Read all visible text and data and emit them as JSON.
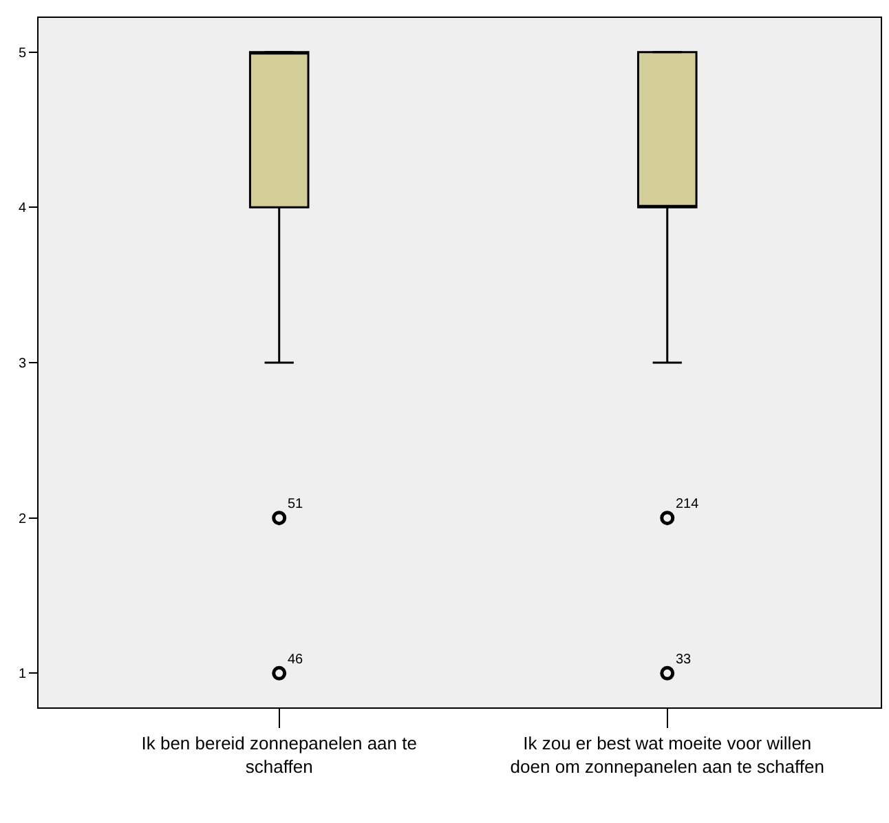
{
  "chart_data": {
    "type": "box",
    "categories": [
      "Ik ben bereid zonnepanelen aan te schaffen",
      "Ik zou er best wat moeite voor willen doen om zonnepanelen aan te schaffen"
    ],
    "boxes": [
      {
        "low": 3,
        "q1": 4,
        "median": 5,
        "q3": 5,
        "high": 5
      },
      {
        "low": 3,
        "q1": 4,
        "median": 4,
        "q3": 5,
        "high": 5
      }
    ],
    "color": "#d3cd98",
    "series": [
      {
        "type": "scatter",
        "color": "#000000",
        "x": [
          "Ik ben bereid zonnepanelen aan te schaffen",
          "Ik ben bereid zonnepanelen aan te schaffen",
          "Ik zou er best wat moeite voor willen doen om zonnepanelen aan te schaffen",
          "Ik zou er best wat moeite voor willen doen om zonnepanelen aan te schaffen"
        ],
        "values": [
          2,
          1,
          2,
          1
        ]
      }
    ],
    "annotations": [
      {
        "text": "51",
        "x": "Ik ben bereid zonnepanelen aan te schaffen",
        "y": 2
      },
      {
        "text": "46",
        "x": "Ik ben bereid zonnepanelen aan te schaffen",
        "y": 1
      },
      {
        "text": "214",
        "x": "Ik zou er best wat moeite voor willen doen om zonnepanelen aan te schaffen",
        "y": 2
      },
      {
        "text": "33",
        "x": "Ik zou er best wat moeite voor willen doen om zonnepanelen aan te schaffen",
        "y": 1
      }
    ],
    "ylim": [
      0.78,
      5.22
    ],
    "yticks": [
      1,
      2,
      3,
      4,
      5
    ],
    "grid": false,
    "marker": "circle"
  }
}
